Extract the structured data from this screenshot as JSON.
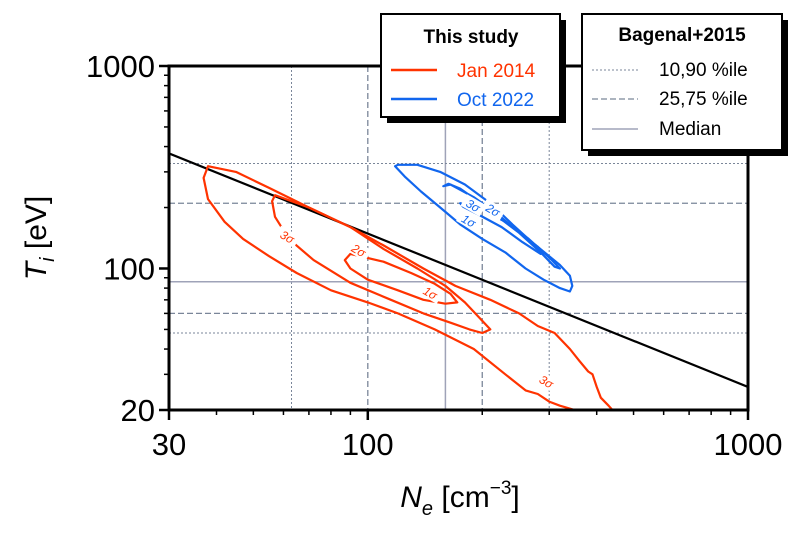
{
  "chart_data": {
    "type": "line",
    "xlabel": {
      "main": "N",
      "sub": "e",
      "unit_pre": " [cm",
      "sup": "−3",
      "unit_post": "]"
    },
    "ylabel": {
      "main": "T",
      "sub": "i",
      "unit": " [eV]"
    },
    "x_scale": "log",
    "y_scale": "log",
    "xlim": [
      30,
      1000
    ],
    "ylim": [
      20,
      1000
    ],
    "x_ticks": [
      30,
      100,
      1000
    ],
    "x_tick_labels": [
      "30",
      "100",
      "1000"
    ],
    "y_ticks": [
      20,
      100,
      1000
    ],
    "y_tick_labels": [
      "20",
      "100",
      "1000"
    ],
    "grid": false,
    "legend_study": {
      "title": "This study",
      "placement": "top-right",
      "entries": [
        {
          "label": "Jan 2014",
          "color": "#ff3300"
        },
        {
          "label": "Oct 2022",
          "color": "#1166ee"
        }
      ]
    },
    "legend_bagenal": {
      "title": "Bagenal+2015",
      "placement": "top-right",
      "entries": [
        {
          "label": "10,90 %ile",
          "style": "dotted"
        },
        {
          "label": "25,75 %ile",
          "style": "dashed"
        },
        {
          "label": "Median",
          "style": "solid"
        }
      ]
    },
    "reference_lines": {
      "color": "#7a8699",
      "ne_p10": 63,
      "ne_p90": 300,
      "ne_p25": 100,
      "ne_p75": 200,
      "ne_median": 160,
      "ti_p10": 48,
      "ti_p90": 330,
      "ti_p25": 60,
      "ti_p75": 210,
      "ti_median": 86
    },
    "fit_line": {
      "color": "#000000",
      "x": [
        30,
        1000
      ],
      "y": [
        370,
        26
      ]
    },
    "series": [
      {
        "name": "Jan 2014",
        "color": "#ff3300",
        "contours": [
          {
            "level": "3σ",
            "label_at": [
              61,
              140
            ],
            "points": [
              [
                38,
                320
              ],
              [
                45,
                300
              ],
              [
                55,
                250
              ],
              [
                70,
                200
              ],
              [
                90,
                160
              ],
              [
                110,
                130
              ],
              [
                140,
                100
              ],
              [
                170,
                82
              ],
              [
                210,
                70
              ],
              [
                250,
                60
              ],
              [
                280,
                52
              ],
              [
                310,
                48
              ],
              [
                340,
                40
              ],
              [
                360,
                35
              ],
              [
                380,
                31
              ],
              [
                390,
                30
              ],
              [
                400,
                26
              ],
              [
                410,
                23
              ],
              [
                430,
                21
              ],
              [
                440,
                20
              ],
              [
                350,
                20
              ],
              [
                320,
                21
              ],
              [
                300,
                22
              ],
              [
                280,
                24
              ],
              [
                260,
                25
              ],
              [
                230,
                30
              ],
              [
                190,
                40
              ],
              [
                150,
                50
              ],
              [
                120,
                60
              ],
              [
                100,
                68
              ],
              [
                80,
                78
              ],
              [
                65,
                95
              ],
              [
                55,
                115
              ],
              [
                47,
                140
              ],
              [
                42,
                170
              ],
              [
                38,
                220
              ],
              [
                37,
                280
              ],
              [
                38,
                320
              ]
            ]
          },
          {
            "level": "2σ",
            "label_at": [
              94,
              120
            ],
            "points": [
              [
                57,
                230
              ],
              [
                70,
                200
              ],
              [
                90,
                160
              ],
              [
                110,
                125
              ],
              [
                135,
                100
              ],
              [
                160,
                82
              ],
              [
                180,
                68
              ],
              [
                195,
                58
              ],
              [
                210,
                50
              ],
              [
                200,
                48
              ],
              [
                185,
                50
              ],
              [
                165,
                54
              ],
              [
                140,
                60
              ],
              [
                115,
                70
              ],
              [
                90,
                85
              ],
              [
                72,
                110
              ],
              [
                62,
                140
              ],
              [
                57,
                180
              ],
              [
                56,
                215
              ],
              [
                57,
                230
              ]
            ]
          },
          {
            "level": "1σ",
            "label_at": [
              145,
              74
            ],
            "points": [
              [
                90,
                118
              ],
              [
                110,
                108
              ],
              [
                130,
                95
              ],
              [
                150,
                84
              ],
              [
                165,
                75
              ],
              [
                172,
                68
              ],
              [
                160,
                67
              ],
              [
                140,
                70
              ],
              [
                120,
                78
              ],
              [
                100,
                88
              ],
              [
                90,
                100
              ],
              [
                87,
                110
              ],
              [
                90,
                118
              ]
            ]
          },
          {
            "level": "3σ",
            "label_at": [
              293,
              27
            ],
            "points": []
          }
        ]
      },
      {
        "name": "Oct 2022",
        "color": "#1166ee",
        "contours": [
          {
            "level": "3σ",
            "label_at": [
              188,
              200
            ],
            "points": [
              [
                118,
                320
              ],
              [
                125,
                285
              ],
              [
                138,
                240
              ],
              [
                155,
                200
              ],
              [
                175,
                165
              ],
              [
                200,
                140
              ],
              [
                230,
                120
              ],
              [
                260,
                100
              ],
              [
                290,
                88
              ],
              [
                320,
                80
              ],
              [
                340,
                77
              ],
              [
                345,
                82
              ],
              [
                340,
                92
              ],
              [
                320,
                104
              ],
              [
                300,
                115
              ],
              [
                270,
                135
              ],
              [
                240,
                165
              ],
              [
                210,
                210
              ],
              [
                180,
                260
              ],
              [
                155,
                300
              ],
              [
                135,
                325
              ],
              [
                120,
                325
              ],
              [
                118,
                320
              ]
            ]
          },
          {
            "level": "2σ",
            "label_at": [
              212,
              190
            ],
            "points": [
              [
                165,
                260
              ],
              [
                190,
                225
              ],
              [
                220,
                185
              ],
              [
                250,
                150
              ],
              [
                285,
                120
              ],
              [
                310,
                102
              ],
              [
                320,
                100
              ],
              [
                305,
                110
              ],
              [
                280,
                128
              ],
              [
                250,
                150
              ],
              [
                220,
                180
              ],
              [
                195,
                215
              ],
              [
                175,
                248
              ],
              [
                163,
                262
              ],
              [
                158,
                255
              ],
              [
                165,
                260
              ]
            ]
          },
          {
            "level": "1σ",
            "label_at": [
              183,
              168
            ],
            "points": [
              [
                175,
                210
              ],
              [
                200,
                195
              ],
              [
                230,
                170
              ],
              [
                265,
                140
              ],
              [
                290,
                120
              ],
              [
                285,
                118
              ],
              [
                255,
                135
              ],
              [
                225,
                160
              ],
              [
                195,
                185
              ],
              [
                178,
                202
              ],
              [
                175,
                210
              ]
            ]
          }
        ]
      }
    ]
  }
}
